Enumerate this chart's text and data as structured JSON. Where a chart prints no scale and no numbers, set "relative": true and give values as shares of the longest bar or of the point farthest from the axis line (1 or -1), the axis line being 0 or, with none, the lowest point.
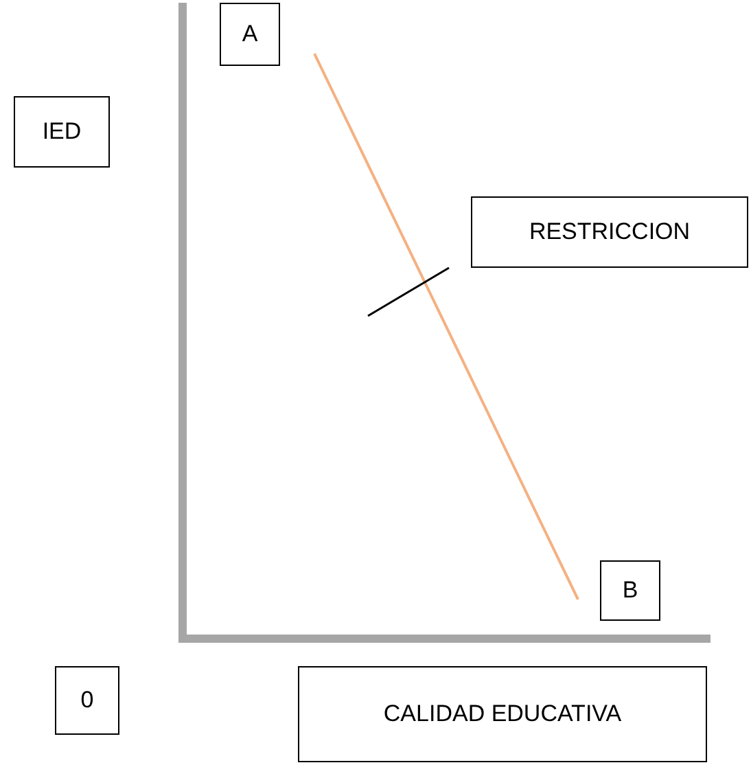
{
  "chart_data": {
    "type": "line",
    "relative": true,
    "categories": [
      null,
      null
    ],
    "series": [
      {
        "color": "#f4b183",
        "values": [
          1,
          0.067
        ]
      }
    ],
    "xlabel": "CALIDAD EDUCATIVA",
    "ylabel": "IED",
    "annotations": [
      "A",
      "B",
      "RESTRICCION",
      "0"
    ]
  }
}
